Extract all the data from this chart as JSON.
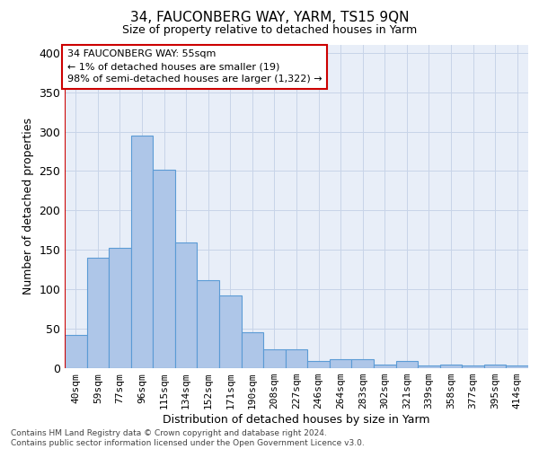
{
  "title": "34, FAUCONBERG WAY, YARM, TS15 9QN",
  "subtitle": "Size of property relative to detached houses in Yarm",
  "xlabel": "Distribution of detached houses by size in Yarm",
  "ylabel": "Number of detached properties",
  "bar_labels": [
    "40sqm",
    "59sqm",
    "77sqm",
    "96sqm",
    "115sqm",
    "134sqm",
    "152sqm",
    "171sqm",
    "190sqm",
    "208sqm",
    "227sqm",
    "246sqm",
    "264sqm",
    "283sqm",
    "302sqm",
    "321sqm",
    "339sqm",
    "358sqm",
    "377sqm",
    "395sqm",
    "414sqm"
  ],
  "bar_values": [
    42,
    140,
    153,
    295,
    252,
    160,
    112,
    92,
    46,
    24,
    24,
    9,
    11,
    11,
    5,
    9,
    3,
    4,
    3,
    4,
    3
  ],
  "bar_color": "#aec6e8",
  "bar_edge_color": "#5b9bd5",
  "grid_color": "#c8d4e8",
  "bg_color": "#e8eef8",
  "annotation_line1": "34 FAUCONBERG WAY: 55sqm",
  "annotation_line2": "← 1% of detached houses are smaller (19)",
  "annotation_line3": "98% of semi-detached houses are larger (1,322) →",
  "ylim": [
    0,
    410
  ],
  "yticks": [
    0,
    50,
    100,
    150,
    200,
    250,
    300,
    350,
    400
  ],
  "footnote": "Contains HM Land Registry data © Crown copyright and database right 2024.\nContains public sector information licensed under the Open Government Licence v3.0.",
  "annotation_box_color": "#cc0000",
  "title_fontsize": 11,
  "subtitle_fontsize": 9,
  "ylabel_fontsize": 9,
  "xlabel_fontsize": 9,
  "tick_fontsize": 8,
  "annotation_fontsize": 8,
  "footnote_fontsize": 6.5
}
